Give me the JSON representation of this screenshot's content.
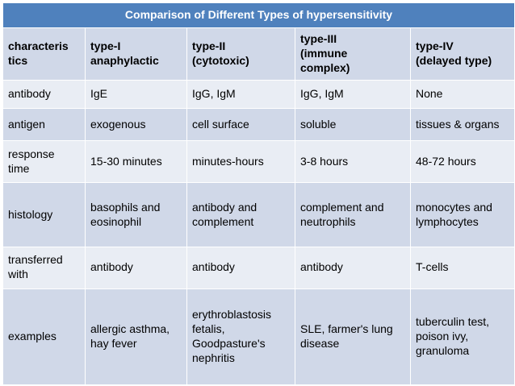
{
  "title": "Comparison of Different Types of hypersensitivity",
  "headers": [
    "characteris\ntics",
    "type-I\nanaphylactic",
    "type-II\n(cytotoxic)",
    "type-III\n(immune\ncomplex)",
    "type-IV\n(delayed type)"
  ],
  "rows": [
    [
      "antibody",
      "IgE",
      "IgG, IgM",
      "IgG, IgM",
      "None"
    ],
    [
      "antigen",
      "exogenous",
      "cell surface",
      "soluble",
      "tissues & organs"
    ],
    [
      "response\ntime",
      "15-30 minutes",
      "minutes-hours",
      "3-8 hours",
      "48-72 hours"
    ],
    [
      "histology",
      "basophils and\neosinophil",
      "antibody and\ncomplement",
      "complement and\nneutrophils",
      "monocytes and\nlymphocytes"
    ],
    [
      "transferred\nwith",
      "antibody",
      "antibody",
      "antibody",
      "T-cells"
    ],
    [
      "examples",
      "allergic asthma,\nhay fever",
      "erythroblastosis\nfetalis,\nGoodpasture's\nnephritis",
      "SLE, farmer's lung\ndisease",
      "tuberculin test,\npoison ivy,\ngranuloma"
    ]
  ],
  "colors": {
    "title_bg": "#4f81bd",
    "header_bg": "#d0d8e8",
    "row_light_bg": "#e9edf4",
    "row_dark_bg": "#d0d8e8"
  }
}
